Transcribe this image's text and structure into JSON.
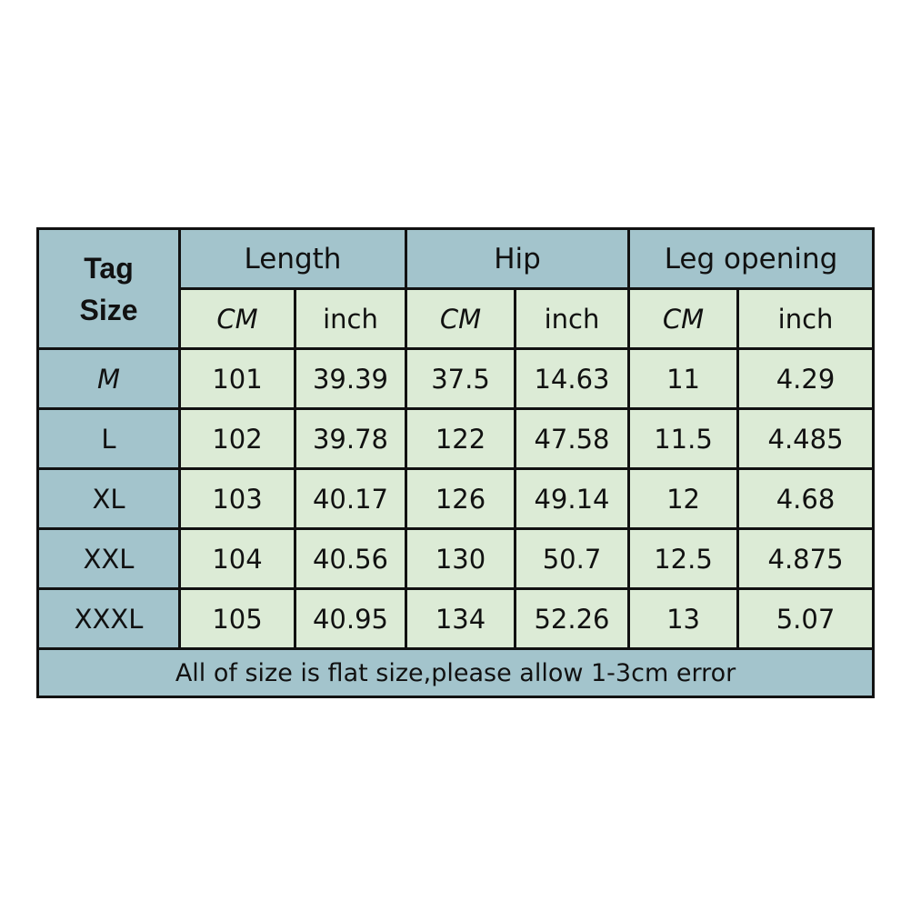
{
  "table": {
    "tag_header": [
      "Tag",
      "Size"
    ],
    "groups": [
      "Length",
      "Hip",
      "Leg opening"
    ],
    "units": [
      "CM",
      "inch",
      "CM",
      "inch",
      "CM",
      "inch"
    ],
    "rows": [
      {
        "size": "M",
        "values": [
          "101",
          "39.39",
          "37.5",
          "14.63",
          "11",
          "4.29"
        ]
      },
      {
        "size": "L",
        "values": [
          "102",
          "39.78",
          "122",
          "47.58",
          "11.5",
          "4.485"
        ]
      },
      {
        "size": "XL",
        "values": [
          "103",
          "40.17",
          "126",
          "49.14",
          "12",
          "4.68"
        ]
      },
      {
        "size": "XXL",
        "values": [
          "104",
          "40.56",
          "130",
          "50.7",
          "12.5",
          "4.875"
        ]
      },
      {
        "size": "XXXL",
        "values": [
          "105",
          "40.95",
          "134",
          "52.26",
          "13",
          "5.07"
        ]
      }
    ],
    "note": "All of size is flat size,please allow 1-3cm error"
  },
  "colors": {
    "header_blue": "#a3c4cc",
    "cell_green": "#dcebd6",
    "border": "#111111"
  }
}
